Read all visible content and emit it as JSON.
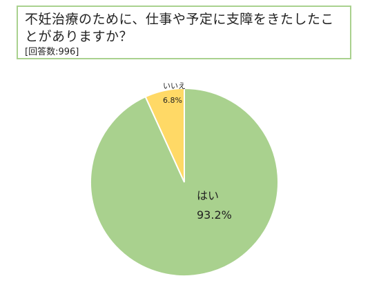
{
  "header": {
    "title": "不妊治療のために、仕事や予定に支障をきたしたことがありますか？",
    "sample_note": "[回答数:996]"
  },
  "chart_data": {
    "type": "pie",
    "slices": [
      {
        "label": "はい",
        "value": 93.2,
        "display": "93.2%",
        "color": "#a9d18e"
      },
      {
        "label": "いいえ",
        "value": 6.8,
        "display": "6.8%",
        "color": "#ffd966"
      }
    ],
    "start": "12 o'clock",
    "direction": "clockwise",
    "legend": "none",
    "border_color": "#ffffff"
  }
}
